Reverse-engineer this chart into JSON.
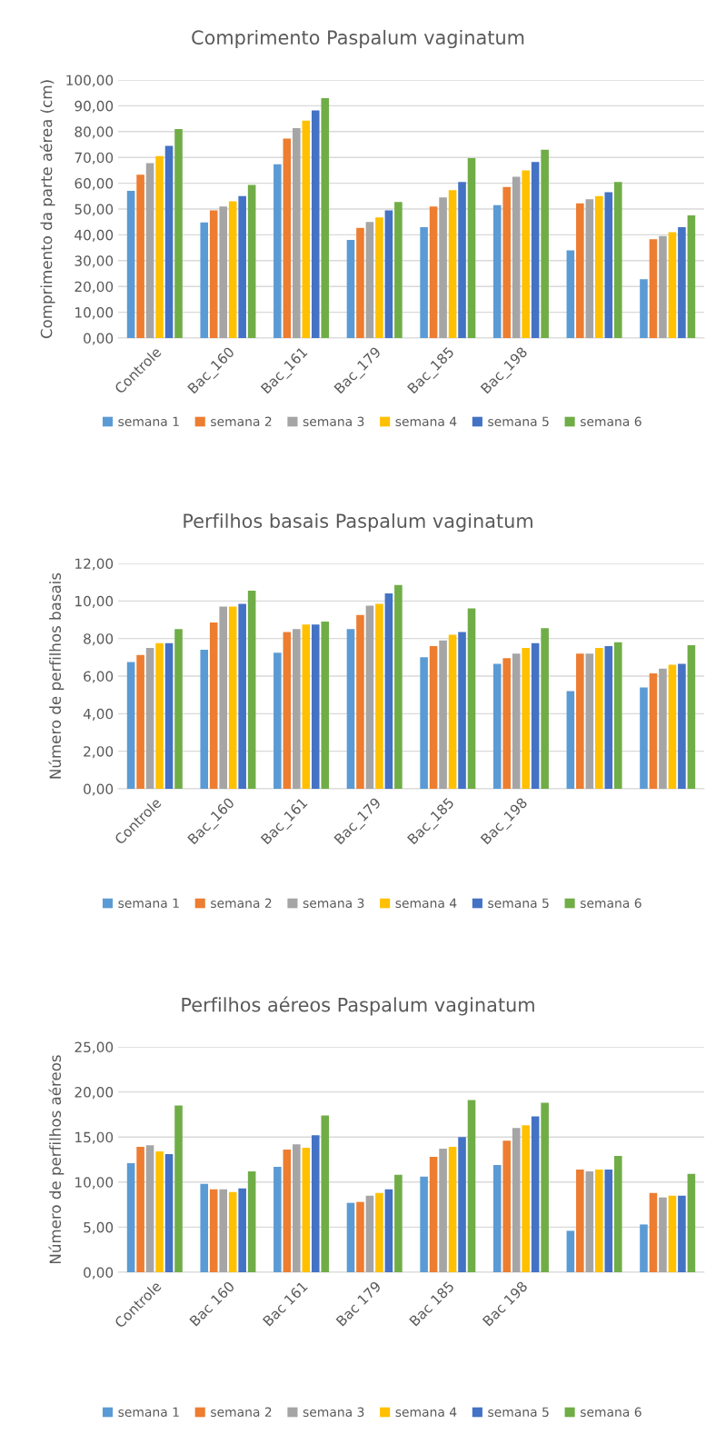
{
  "chart_data": [
    {
      "type": "bar",
      "title": "Comprimento Paspalum vaginatum",
      "ylabel": "Comprimento da parte aérea (cm)",
      "categories": [
        "Controle",
        "Bac_160",
        "Bac_161",
        "Bac_179",
        "Bac_185",
        "Bac_198",
        null,
        null
      ],
      "series": [
        {
          "name": "semana 1",
          "color": "#5b9bd5",
          "values": [
            57,
            44.8,
            67.3,
            38,
            43,
            51.5,
            34,
            22.8
          ]
        },
        {
          "name": "semana 2",
          "color": "#ed7d31",
          "values": [
            63.3,
            49.5,
            77.3,
            42.7,
            51,
            58.5,
            52.2,
            38.3
          ]
        },
        {
          "name": "semana 3",
          "color": "#a5a5a5",
          "values": [
            67.8,
            51,
            81.3,
            45,
            54.5,
            62.5,
            53.8,
            39.5
          ]
        },
        {
          "name": "semana 4",
          "color": "#ffc000",
          "values": [
            70.5,
            53,
            84.2,
            46.7,
            57.3,
            65,
            55,
            41
          ]
        },
        {
          "name": "semana 5",
          "color": "#4472c4",
          "values": [
            74.5,
            55,
            88.2,
            49.5,
            60.5,
            68.2,
            56.5,
            43
          ]
        },
        {
          "name": "semana 6",
          "color": "#70ad47",
          "values": [
            81,
            59.3,
            93,
            52.7,
            69.7,
            73,
            60.5,
            47.5
          ]
        }
      ],
      "ylim": [
        0,
        100
      ],
      "yticks": [
        {
          "value": 0,
          "label": "0,00"
        },
        {
          "value": 10,
          "label": "10,00"
        },
        {
          "value": 20,
          "label": "20,00"
        },
        {
          "value": 30,
          "label": "30,00"
        },
        {
          "value": 40,
          "label": "40,00"
        },
        {
          "value": 50,
          "label": "50,00"
        },
        {
          "value": 60,
          "label": "60,00"
        },
        {
          "value": 70,
          "label": "70,00"
        },
        {
          "value": 80,
          "label": "80,00"
        },
        {
          "value": 90,
          "label": "90,00"
        },
        {
          "value": 100,
          "label": "100,00"
        }
      ],
      "grid": "y",
      "legend": "bottom"
    },
    {
      "type": "bar",
      "title": "Perfilhos basais Paspalum vaginatum",
      "ylabel": "Número de perfilhos basais",
      "categories": [
        "Controle",
        "Bac_160",
        "Bac_161",
        "Bac_179",
        "Bac_185",
        "Bac_198",
        null,
        null
      ],
      "series": [
        {
          "name": "semana 1",
          "color": "#5b9bd5",
          "values": [
            6.75,
            7.4,
            7.25,
            8.5,
            7.0,
            6.65,
            5.2,
            5.4
          ]
        },
        {
          "name": "semana 2",
          "color": "#ed7d31",
          "values": [
            7.12,
            8.85,
            8.35,
            9.25,
            7.6,
            6.95,
            7.2,
            6.15
          ]
        },
        {
          "name": "semana 3",
          "color": "#a5a5a5",
          "values": [
            7.5,
            9.7,
            8.5,
            9.75,
            7.9,
            7.2,
            7.2,
            6.4
          ]
        },
        {
          "name": "semana 4",
          "color": "#ffc000",
          "values": [
            7.75,
            9.7,
            8.75,
            9.85,
            8.2,
            7.5,
            7.5,
            6.6
          ]
        },
        {
          "name": "semana 5",
          "color": "#4472c4",
          "values": [
            7.75,
            9.85,
            8.75,
            10.4,
            8.35,
            7.75,
            7.6,
            6.65
          ]
        },
        {
          "name": "semana 6",
          "color": "#70ad47",
          "values": [
            8.5,
            10.55,
            8.9,
            10.85,
            9.6,
            8.55,
            7.8,
            7.65
          ]
        }
      ],
      "ylim": [
        0,
        12
      ],
      "yticks": [
        {
          "value": 0,
          "label": "0,00"
        },
        {
          "value": 2,
          "label": "2,00"
        },
        {
          "value": 4,
          "label": "4,00"
        },
        {
          "value": 6,
          "label": "6,00"
        },
        {
          "value": 8,
          "label": "8,00"
        },
        {
          "value": 10,
          "label": "10,00"
        },
        {
          "value": 12,
          "label": "12,00"
        }
      ],
      "grid": "y",
      "legend": "bottom"
    },
    {
      "type": "bar",
      "title": "Perfilhos aéreos Paspalum vaginatum",
      "ylabel": "Número de perfilhos aéreos",
      "categories": [
        "Controle",
        "Bac 160",
        "Bac 161",
        "Bac 179",
        "Bac 185",
        "Bac 198",
        null,
        null
      ],
      "series": [
        {
          "name": "semana 1",
          "color": "#5b9bd5",
          "values": [
            12.1,
            9.8,
            11.7,
            7.7,
            10.6,
            11.9,
            4.6,
            5.3
          ]
        },
        {
          "name": "semana 2",
          "color": "#ed7d31",
          "values": [
            13.9,
            9.2,
            13.6,
            7.8,
            12.8,
            14.6,
            11.4,
            8.8
          ]
        },
        {
          "name": "semana 3",
          "color": "#a5a5a5",
          "values": [
            14.1,
            9.2,
            14.2,
            8.5,
            13.7,
            16.0,
            11.2,
            8.3
          ]
        },
        {
          "name": "semana 4",
          "color": "#ffc000",
          "values": [
            13.4,
            8.9,
            13.8,
            8.8,
            13.9,
            16.3,
            11.4,
            8.5
          ]
        },
        {
          "name": "semana 5",
          "color": "#4472c4",
          "values": [
            13.1,
            9.3,
            15.2,
            9.2,
            15.0,
            17.3,
            11.4,
            8.5
          ]
        },
        {
          "name": "semana 6",
          "color": "#70ad47",
          "values": [
            18.5,
            11.2,
            17.4,
            10.8,
            19.1,
            18.8,
            12.9,
            10.9
          ]
        }
      ],
      "ylim": [
        0,
        25
      ],
      "yticks": [
        {
          "value": 0,
          "label": "0,00"
        },
        {
          "value": 5,
          "label": "5,00"
        },
        {
          "value": 10,
          "label": "10,00"
        },
        {
          "value": 15,
          "label": "15,00"
        },
        {
          "value": 20,
          "label": "20,00"
        },
        {
          "value": 25,
          "label": "25,00"
        }
      ],
      "grid": "y",
      "legend": "bottom"
    }
  ]
}
